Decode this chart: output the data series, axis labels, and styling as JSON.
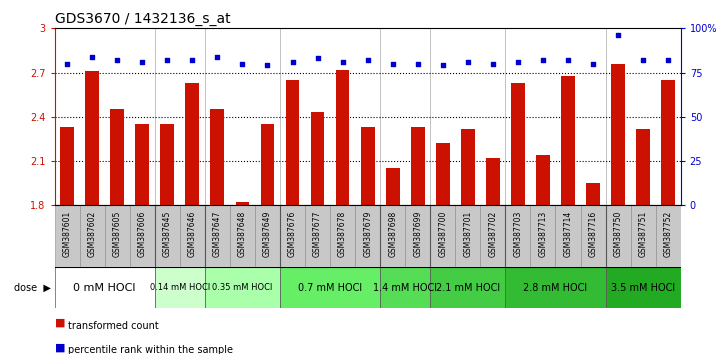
{
  "title": "GDS3670 / 1432136_s_at",
  "samples": [
    "GSM387601",
    "GSM387602",
    "GSM387605",
    "GSM387606",
    "GSM387645",
    "GSM387646",
    "GSM387647",
    "GSM387648",
    "GSM387649",
    "GSM387676",
    "GSM387677",
    "GSM387678",
    "GSM387679",
    "GSM387698",
    "GSM387699",
    "GSM387700",
    "GSM387701",
    "GSM387702",
    "GSM387703",
    "GSM387713",
    "GSM387714",
    "GSM387716",
    "GSM387750",
    "GSM387751",
    "GSM387752"
  ],
  "bar_values": [
    2.33,
    2.71,
    2.45,
    2.35,
    2.35,
    2.63,
    2.45,
    1.82,
    2.35,
    2.65,
    2.43,
    2.72,
    2.33,
    2.05,
    2.33,
    2.22,
    2.32,
    2.12,
    2.63,
    2.14,
    2.68,
    1.95,
    2.76,
    2.32,
    2.65
  ],
  "dot_values": [
    80,
    84,
    82,
    81,
    82,
    82,
    84,
    80,
    79,
    81,
    83,
    81,
    82,
    80,
    80,
    79,
    81,
    80,
    81,
    82,
    82,
    80,
    96,
    82,
    82
  ],
  "ylim_left": [
    1.8,
    3.0
  ],
  "ylim_right": [
    0,
    100
  ],
  "yticks_left": [
    1.8,
    2.1,
    2.4,
    2.7,
    3.0
  ],
  "yticks_right": [
    0,
    25,
    50,
    75,
    100
  ],
  "ytick_labels_right": [
    "0",
    "25",
    "50",
    "75",
    "100%"
  ],
  "hlines": [
    2.1,
    2.4,
    2.7
  ],
  "bar_color": "#cc1100",
  "dot_color": "#0000cc",
  "sample_bg_color": "#c8c8c8",
  "dose_groups": [
    {
      "label": "0 mM HOCl",
      "start": 0,
      "end": 4,
      "color": "#ffffff",
      "fontsize": 8
    },
    {
      "label": "0.14 mM HOCl",
      "start": 4,
      "end": 6,
      "color": "#ccffcc",
      "fontsize": 6
    },
    {
      "label": "0.35 mM HOCl",
      "start": 6,
      "end": 9,
      "color": "#aaffaa",
      "fontsize": 6
    },
    {
      "label": "0.7 mM HOCl",
      "start": 9,
      "end": 13,
      "color": "#66ee66",
      "fontsize": 7
    },
    {
      "label": "1.4 mM HOCl",
      "start": 13,
      "end": 15,
      "color": "#55dd55",
      "fontsize": 7
    },
    {
      "label": "2.1 mM HOCl",
      "start": 15,
      "end": 18,
      "color": "#44cc44",
      "fontsize": 7
    },
    {
      "label": "2.8 mM HOCl",
      "start": 18,
      "end": 22,
      "color": "#33bb33",
      "fontsize": 7
    },
    {
      "label": "3.5 mM HOCl",
      "start": 22,
      "end": 25,
      "color": "#22aa22",
      "fontsize": 7
    }
  ],
  "title_fontsize": 10,
  "tick_fontsize": 7,
  "sample_fontsize": 5.5,
  "legend_fontsize": 7,
  "dose_label": "dose"
}
